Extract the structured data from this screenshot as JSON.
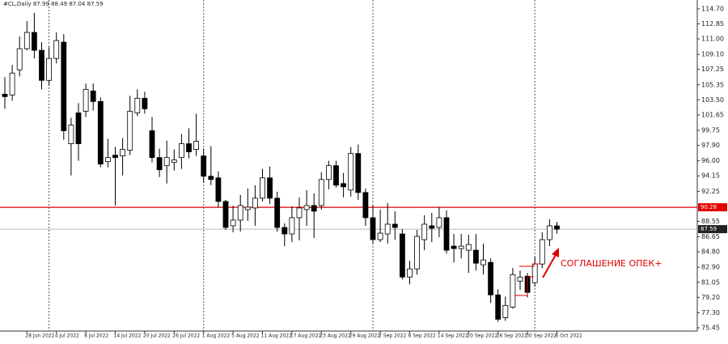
{
  "chart_data": {
    "type": "candlestick",
    "title": "#CL,Daily  87.99 88.49 87.04 87.59",
    "categories": [
      null,
      null,
      null,
      "28 Jun 2022",
      null,
      null,
      null,
      "4 Jul 2022",
      null,
      null,
      null,
      "8 Jul 2022",
      null,
      null,
      null,
      "14 Jul 2022",
      null,
      null,
      null,
      "20 Jul 2022",
      null,
      null,
      null,
      "26 Jul 2022",
      null,
      null,
      null,
      "1 Aug 2022",
      null,
      null,
      null,
      "5 Aug 2022",
      null,
      null,
      null,
      "11 Aug 2022",
      null,
      null,
      null,
      "17 Aug 2022",
      null,
      null,
      null,
      "23 Aug 2022",
      null,
      null,
      null,
      "29 Aug 2022",
      null,
      null,
      null,
      "2 Sep 2022",
      null,
      null,
      null,
      "8 Sep 2022",
      null,
      null,
      null,
      "14 Sep 2022",
      null,
      null,
      null,
      "20 Sep 2022",
      null,
      null,
      null,
      "26 Sep 2022",
      null,
      null,
      null,
      "30 Sep 2022",
      null,
      null,
      null,
      "6 Oct 2022"
    ],
    "open": [
      104.2,
      104.1,
      107.2,
      109.8,
      111.8,
      109.6,
      105.9,
      108.6,
      110.6,
      98.1,
      101.9,
      102.1,
      104.6,
      103.3,
      95.9,
      96.7,
      96.6,
      97.3,
      101.9,
      103.7,
      99.7,
      96.4,
      95.4,
      95.8,
      96.4,
      98.1,
      97.4,
      96.6,
      94.1,
      93.9,
      91.0,
      88.0,
      88.7,
      90.0,
      90.2,
      91.4,
      93.9,
      91.4,
      87.8,
      87.0,
      89.0,
      90.0,
      90.5,
      90.5,
      93.7,
      95.4,
      93.2,
      92.4,
      96.9,
      92.1,
      89.0,
      86.3,
      87.0,
      88.2,
      87.0,
      81.7,
      82.7,
      86.3,
      88.0,
      87.8,
      89.0,
      85.5,
      85.2,
      85.0,
      85.0,
      83.2,
      83.5,
      79.5,
      76.7,
      78.0,
      81.2,
      81.8,
      81.0,
      83.3,
      86.3,
      87.99
    ],
    "high": [
      106.3,
      107.8,
      111.3,
      113.2,
      114.2,
      110.6,
      110.0,
      111.8,
      111.6,
      101.3,
      103.1,
      105.5,
      105.5,
      103.8,
      98.7,
      97.7,
      98.8,
      104.0,
      104.8,
      104.5,
      101.4,
      97.5,
      98.5,
      97.4,
      99.3,
      100.0,
      101.8,
      97.5,
      97.8,
      94.7,
      91.2,
      90.5,
      91.8,
      92.6,
      93.0,
      95.0,
      95.3,
      92.2,
      88.3,
      90.4,
      91.5,
      92.4,
      92.0,
      94.6,
      96.0,
      96.0,
      94.5,
      97.7,
      98.0,
      92.6,
      90.5,
      90.0,
      90.8,
      89.8,
      87.6,
      83.7,
      87.5,
      89.3,
      89.6,
      90.3,
      89.9,
      87.0,
      87.0,
      86.9,
      87.0,
      85.8,
      84.0,
      80.2,
      79.3,
      82.8,
      82.5,
      82.2,
      84.2,
      87.2,
      88.8,
      88.49
    ],
    "low": [
      102.4,
      103.4,
      106.4,
      109.6,
      108.6,
      104.8,
      105.3,
      108.0,
      98.6,
      94.2,
      96.0,
      101.4,
      102.2,
      95.2,
      95.2,
      90.5,
      94.2,
      96.7,
      101.5,
      101.8,
      95.8,
      94.0,
      93.2,
      94.8,
      95.0,
      96.3,
      96.6,
      93.3,
      93.0,
      90.3,
      87.5,
      87.2,
      87.3,
      88.6,
      88.0,
      91.0,
      90.7,
      87.3,
      85.5,
      86.0,
      86.2,
      88.0,
      86.5,
      90.0,
      92.5,
      92.7,
      91.5,
      91.6,
      91.2,
      88.0,
      85.8,
      86.0,
      85.8,
      86.3,
      81.4,
      80.8,
      82.0,
      85.0,
      86.0,
      86.6,
      84.6,
      83.5,
      84.0,
      82.2,
      82.5,
      82.0,
      78.5,
      76.2,
      76.3,
      77.8,
      80.1,
      79.2,
      80.5,
      82.8,
      85.5,
      87.04
    ],
    "close": [
      103.9,
      106.8,
      109.8,
      111.8,
      109.6,
      105.9,
      108.6,
      110.8,
      99.7,
      100.4,
      98.1,
      104.8,
      103.3,
      95.6,
      96.4,
      96.4,
      97.4,
      102.1,
      103.7,
      102.4,
      96.4,
      94.9,
      96.4,
      96.1,
      98.1,
      97.1,
      98.4,
      94.1,
      93.7,
      91.0,
      87.8,
      88.7,
      90.5,
      90.3,
      91.4,
      93.9,
      91.4,
      87.8,
      87.0,
      89.0,
      90.2,
      90.5,
      89.8,
      93.7,
      95.4,
      93.0,
      92.8,
      96.9,
      92.1,
      89.0,
      86.3,
      87.1,
      88.2,
      87.8,
      81.7,
      82.7,
      86.7,
      88.2,
      87.7,
      89.0,
      85.0,
      85.2,
      85.5,
      85.7,
      83.4,
      83.8,
      79.5,
      76.5,
      78.2,
      82.0,
      81.7,
      79.8,
      83.3,
      86.3,
      88.0,
      87.59
    ],
    "ylim": [
      75.05,
      115.79
    ],
    "yticks": [
      {
        "value": 114.7,
        "label": "114.70"
      },
      112.85,
      {
        "value": 111,
        "label": "111.00"
      },
      {
        "value": 109.1,
        "label": "109.10"
      },
      107.25,
      105.35,
      {
        "value": 103.5,
        "label": "103.50"
      },
      101.65,
      99.75,
      {
        "value": 97.9,
        "label": "97.90"
      },
      {
        "value": 96,
        "label": "96.00"
      },
      94.15,
      92.25,
      88.55,
      86.65,
      {
        "value": 84.8,
        "label": "84.80"
      },
      {
        "value": 82.9,
        "label": "82.90"
      },
      81.05,
      {
        "value": 79.2,
        "label": "79.20"
      },
      {
        "value": 77.3,
        "label": "77.30"
      },
      75.45
    ],
    "level_line": 90.28,
    "level_color": "#e00000",
    "current_price": 87.59,
    "annotation": "СОГЛАШЕНИЕ ОПЕК+"
  }
}
